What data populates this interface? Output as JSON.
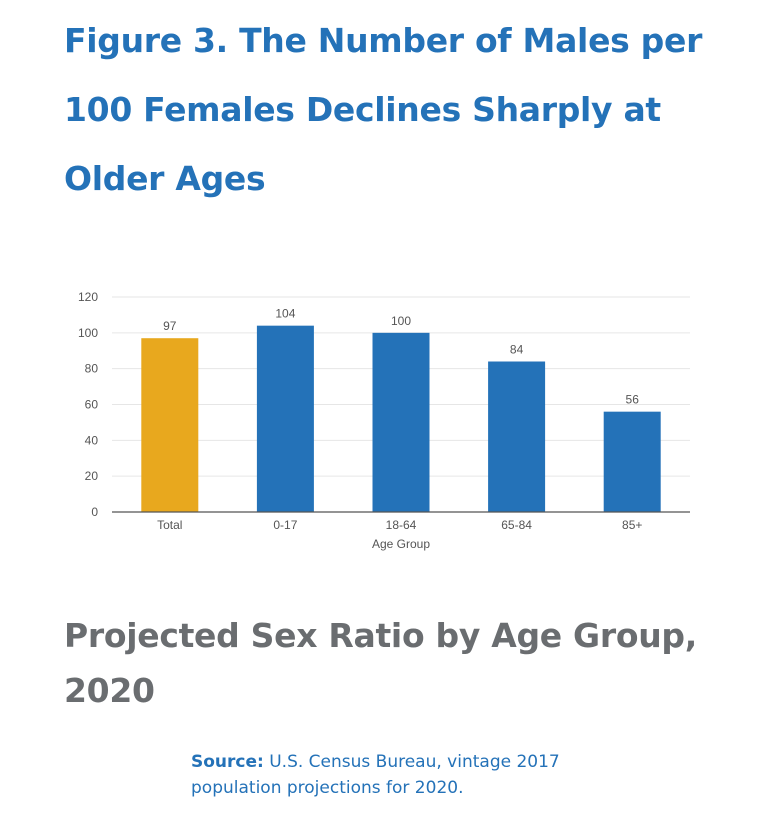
{
  "figure_title": "Figure 3. The Number of Males per 100 Females Declines Sharply at Older Ages",
  "chart_subtitle": "Projected Sex Ratio by Age Group, 2020",
  "source": {
    "label": "Source:",
    "text": "U.S. Census Bureau, vintage 2017 population projections for 2020."
  },
  "colors": {
    "title": "#2472b8",
    "subtitle": "#6a6d70",
    "total_bar": "#e8a81e",
    "bar": "#2472b8"
  },
  "chart_data": {
    "type": "bar",
    "categories": [
      "Total",
      "0-17",
      "18-64",
      "65-84",
      "85+"
    ],
    "values": [
      97,
      104,
      100,
      84,
      56
    ],
    "data_labels": [
      "97",
      "104",
      "100",
      "84",
      "56"
    ],
    "bar_colors": [
      "#e8a81e",
      "#2472b8",
      "#2472b8",
      "#2472b8",
      "#2472b8"
    ],
    "xlabel": "Age Group",
    "ylabel": "",
    "ylim": [
      0,
      120
    ],
    "yticks": [
      0,
      20,
      40,
      60,
      80,
      100,
      120
    ],
    "grid": true,
    "legend": "none"
  }
}
